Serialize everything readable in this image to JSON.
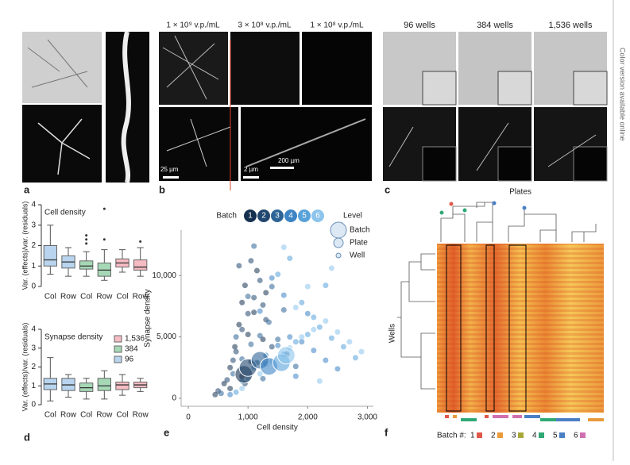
{
  "side_note": "Color version available online",
  "panel_labels": [
    "a",
    "b",
    "c",
    "d",
    "e",
    "f"
  ],
  "panel_b": {
    "concentrations": [
      "1 × 10⁹ v.p./mL",
      "3 × 10⁸ v.p./mL",
      "1 × 10⁸ v.p./mL"
    ],
    "scale_bars": [
      "200 µm",
      "25 µm",
      "2 µm"
    ]
  },
  "panel_c": {
    "plate_formats": [
      "96 wells",
      "384 wells",
      "1,536 wells"
    ]
  },
  "panel_f": {
    "title": "Plates",
    "ylabel": "Wells",
    "legend_title": "Batch #:",
    "batches": [
      {
        "label": "1",
        "color": "#e0584a"
      },
      {
        "label": "2",
        "color": "#e89a3c"
      },
      {
        "label": "3",
        "color": "#a8a83a"
      },
      {
        "label": "4",
        "color": "#2fa876"
      },
      {
        "label": "5",
        "color": "#4a7fc4"
      },
      {
        "label": "6",
        "color": "#d070b0"
      }
    ]
  },
  "chart_data": [
    {
      "type": "box",
      "title": "Cell density",
      "ylabel": "Var. (effects)/var. (residuals)",
      "categories": [
        "Col",
        "Row",
        "Col",
        "Row",
        "Col",
        "Row"
      ],
      "ylim": [
        0,
        4
      ],
      "yticks": [
        0,
        1,
        2,
        3,
        4
      ],
      "series": [
        {
          "color": "#b8d4ee",
          "stats": [
            {
              "min": 0.6,
              "q1": 1.0,
              "median": 1.3,
              "q3": 2.0,
              "max": 3.0,
              "outliers": []
            },
            {
              "min": 0.5,
              "q1": 0.9,
              "median": 1.2,
              "q3": 1.5,
              "max": 1.9,
              "outliers": []
            }
          ]
        },
        {
          "color": "#a6d8b6",
          "stats": [
            {
              "min": 0.5,
              "q1": 0.85,
              "median": 1.0,
              "q3": 1.25,
              "max": 1.7,
              "outliers": [
                2.1,
                2.3,
                2.5
              ]
            },
            {
              "min": 0.3,
              "q1": 0.5,
              "median": 0.8,
              "q3": 1.15,
              "max": 1.8,
              "outliers": [
                2.3,
                3.8
              ]
            }
          ]
        },
        {
          "color": "#f6bcc4",
          "stats": [
            {
              "min": 0.7,
              "q1": 0.95,
              "median": 1.15,
              "q3": 1.35,
              "max": 1.8,
              "outliers": []
            },
            {
              "min": 0.5,
              "q1": 0.8,
              "median": 0.95,
              "q3": 1.3,
              "max": 1.9,
              "outliers": [
                2.2
              ]
            }
          ]
        }
      ]
    },
    {
      "type": "box",
      "title": "Synapse density",
      "ylabel": "Var. (effects)/var. (residuals)",
      "categories": [
        "Col",
        "Row",
        "Col",
        "Row",
        "Col",
        "Row"
      ],
      "ylim": [
        0,
        4
      ],
      "yticks": [
        0,
        1,
        2,
        3,
        4
      ],
      "legend": true,
      "series": [
        {
          "name": "96",
          "color": "#b8d4ee",
          "stats": [
            {
              "min": 0.2,
              "q1": 0.8,
              "median": 1.1,
              "q3": 1.4,
              "max": 2.5,
              "outliers": []
            },
            {
              "min": 0.4,
              "q1": 0.75,
              "median": 1.05,
              "q3": 1.4,
              "max": 1.6,
              "outliers": []
            }
          ]
        },
        {
          "name": "384",
          "color": "#a6d8b6",
          "stats": [
            {
              "min": 0.3,
              "q1": 0.7,
              "median": 0.9,
              "q3": 1.15,
              "max": 1.4,
              "outliers": []
            },
            {
              "min": 0.3,
              "q1": 0.75,
              "median": 1.0,
              "q3": 1.4,
              "max": 1.8,
              "outliers": []
            }
          ]
        },
        {
          "name": "1,536",
          "color": "#f6bcc4",
          "stats": [
            {
              "min": 0.5,
              "q1": 0.8,
              "median": 1.05,
              "q3": 1.2,
              "max": 1.6,
              "outliers": []
            },
            {
              "min": 0.7,
              "q1": 0.9,
              "median": 1.05,
              "q3": 1.2,
              "max": 1.4,
              "outliers": []
            }
          ]
        }
      ]
    },
    {
      "type": "scatter",
      "xlabel": "Cell density",
      "ylabel": "Synapse density",
      "xlim": [
        -120,
        3100
      ],
      "ylim": [
        -650,
        13700
      ],
      "xticks": [
        0,
        {
          "value": 1000,
          "label": "1,000"
        },
        {
          "value": 2000,
          "label": "2,000"
        },
        {
          "value": 3000,
          "label": "3,000"
        }
      ],
      "yticks": [
        0,
        {
          "value": 5000,
          "label": "5,000"
        },
        {
          "value": 10000,
          "label": "10,000"
        }
      ],
      "legend_title": "Batch",
      "level_legend_title": "Level",
      "levels": [
        "Batch",
        "Plate",
        "Well"
      ],
      "series": [
        {
          "name": "1",
          "color": "#16314f",
          "x": [
            450,
            600,
            700,
            780,
            850,
            900,
            950,
            1000,
            1050,
            1100,
            1150,
            1250,
            700,
            900,
            1300
          ],
          "y": [
            300,
            1200,
            2500,
            4200,
            6000,
            7800,
            9200,
            5200,
            3000,
            7000,
            10400,
            4800,
            800,
            1800,
            8600
          ]
        },
        {
          "name": "2",
          "color": "#22476f",
          "x": [
            500,
            650,
            800,
            900,
            1000,
            1100,
            1200,
            1300,
            1400,
            850,
            950,
            1150,
            750,
            1050,
            1250
          ],
          "y": [
            600,
            1500,
            3800,
            5600,
            6900,
            8200,
            9600,
            6400,
            4200,
            10800,
            1200,
            2900,
            3100,
            11200,
            7600
          ]
        },
        {
          "name": "3",
          "color": "#2d6496",
          "x": [
            550,
            750,
            900,
            1050,
            1200,
            1350,
            1500,
            1650,
            1800,
            1000,
            1400,
            1250,
            800,
            1600,
            1100
          ],
          "y": [
            400,
            2000,
            3200,
            4400,
            5100,
            6200,
            4800,
            3600,
            2600,
            8300,
            9100,
            1600,
            5000,
            7200,
            12400
          ]
        },
        {
          "name": "4",
          "color": "#3c84c4",
          "x": [
            700,
            900,
            1100,
            1300,
            1500,
            1700,
            1900,
            2100,
            2300,
            2500,
            1200,
            1600,
            2000,
            1400,
            1800
          ],
          "y": [
            300,
            1400,
            2500,
            3500,
            4300,
            5000,
            4600,
            3900,
            3100,
            2400,
            7100,
            8400,
            6900,
            9800,
            1800
          ]
        },
        {
          "name": "5",
          "color": "#58a2da",
          "x": [
            800,
            1000,
            1300,
            1600,
            1800,
            2000,
            2200,
            2400,
            2600,
            2800,
            1500,
            1900,
            2100,
            1700,
            2300
          ],
          "y": [
            500,
            1600,
            2800,
            3600,
            4600,
            5200,
            5800,
            4900,
            4200,
            3300,
            10100,
            7800,
            6600,
            11400,
            9200
          ]
        },
        {
          "name": "6",
          "color": "#8cc4ec",
          "x": [
            900,
            1200,
            1400,
            1700,
            1900,
            2100,
            2300,
            2500,
            2700,
            2900,
            1600,
            2000,
            2400,
            1800,
            2200
          ],
          "y": [
            800,
            2000,
            3000,
            4100,
            5000,
            5600,
            6300,
            5400,
            4600,
            3800,
            12300,
            9100,
            10600,
            7400,
            1400
          ]
        }
      ],
      "batch_points": {
        "x": [
          930,
          1000,
          1200,
          1350,
          1560,
          1640
        ],
        "y": [
          1950,
          2500,
          3100,
          2600,
          2900,
          3500
        ]
      }
    }
  ]
}
